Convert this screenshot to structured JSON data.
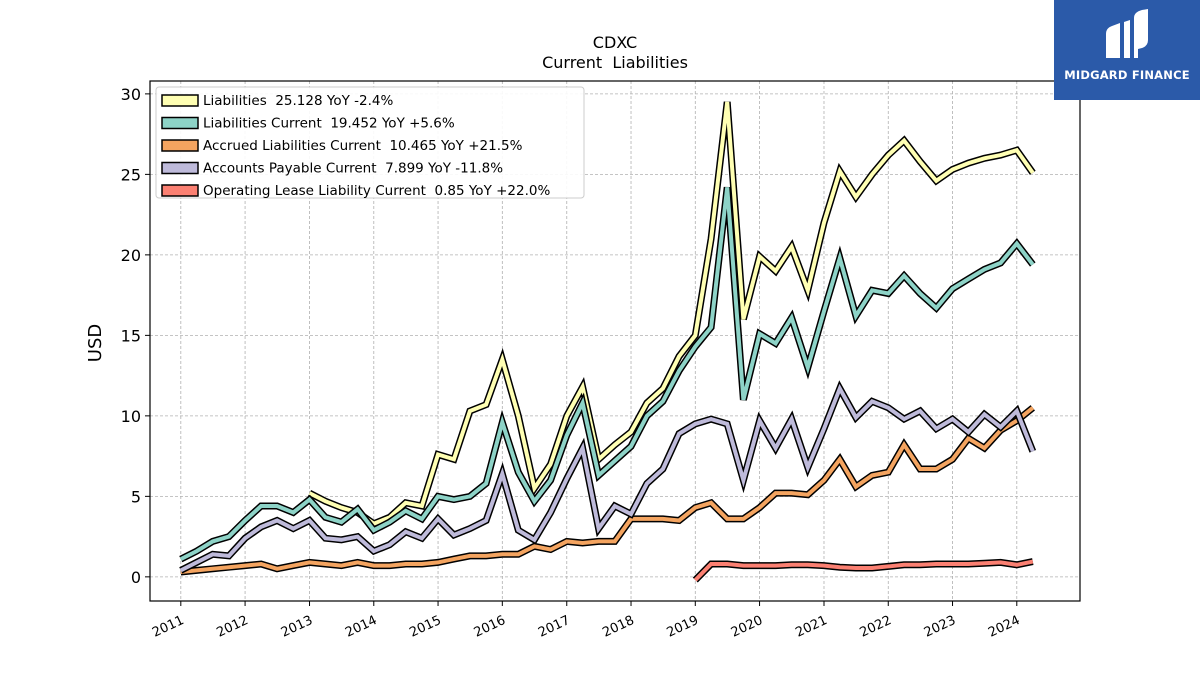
{
  "brand": {
    "name": "MIDGARD FINANCE",
    "color": "#2b5aa9"
  },
  "chart_data": {
    "type": "line",
    "title": "CDXC",
    "subtitle": "Current  Liabilities",
    "ylabel": "USD",
    "xlabel": "",
    "ylim": [
      -1.5,
      30.8
    ],
    "yticks": [
      0,
      5,
      10,
      15,
      20,
      25,
      30
    ],
    "xticks": [
      "2011",
      "2012",
      "2013",
      "2014",
      "2015",
      "2016",
      "2017",
      "2018",
      "2019",
      "2020",
      "2021",
      "2022",
      "2023",
      "2024"
    ],
    "grid": true,
    "legend_position": "top-left",
    "series": [
      {
        "name": "Liabilities",
        "legend_label": "Liabilities  25.128 YoY -2.4%",
        "color": "#ffffb3",
        "points": [
          [
            "2013-01-01",
            5.2
          ],
          [
            "2013-04-01",
            4.7
          ],
          [
            "2013-07-01",
            4.3
          ],
          [
            "2013-10-01",
            4.0
          ],
          [
            "2014-01-01",
            3.3
          ],
          [
            "2014-04-01",
            3.7
          ],
          [
            "2014-07-01",
            4.6
          ],
          [
            "2014-10-01",
            4.4
          ],
          [
            "2015-01-01",
            7.6
          ],
          [
            "2015-04-01",
            7.3
          ],
          [
            "2015-07-01",
            10.3
          ],
          [
            "2015-10-01",
            10.7
          ],
          [
            "2016-01-01",
            13.5
          ],
          [
            "2016-04-01",
            10.0
          ],
          [
            "2016-07-01",
            5.5
          ],
          [
            "2016-10-01",
            7.0
          ],
          [
            "2017-01-01",
            10.0
          ],
          [
            "2017-04-01",
            11.8
          ],
          [
            "2017-07-01",
            7.3
          ],
          [
            "2017-10-01",
            8.2
          ],
          [
            "2018-01-01",
            9.0
          ],
          [
            "2018-04-01",
            10.8
          ],
          [
            "2018-07-01",
            11.7
          ],
          [
            "2018-10-01",
            13.7
          ],
          [
            "2019-01-01",
            15.0
          ],
          [
            "2019-04-01",
            21.0
          ],
          [
            "2019-07-01",
            29.5
          ],
          [
            "2019-10-01",
            16.0
          ],
          [
            "2020-01-01",
            19.9
          ],
          [
            "2020-04-01",
            19.0
          ],
          [
            "2020-07-01",
            20.5
          ],
          [
            "2020-10-01",
            17.8
          ],
          [
            "2021-01-01",
            22.0
          ],
          [
            "2021-04-01",
            25.2
          ],
          [
            "2021-07-01",
            23.6
          ],
          [
            "2021-10-01",
            25.0
          ],
          [
            "2022-01-01",
            26.2
          ],
          [
            "2022-04-01",
            27.1
          ],
          [
            "2022-07-01",
            25.8
          ],
          [
            "2022-10-01",
            24.6
          ],
          [
            "2023-01-01",
            25.3
          ],
          [
            "2023-04-01",
            25.7
          ],
          [
            "2023-07-01",
            26.0
          ],
          [
            "2023-10-01",
            26.2
          ],
          [
            "2024-01-01",
            26.5
          ],
          [
            "2024-04-01",
            25.1
          ]
        ]
      },
      {
        "name": "Liabilities Current",
        "legend_label": "Liabilities Current  19.452 YoY +5.6%",
        "color": "#8dd3c7",
        "points": [
          [
            "2011-01-01",
            1.1
          ],
          [
            "2011-04-01",
            1.6
          ],
          [
            "2011-07-01",
            2.2
          ],
          [
            "2011-10-01",
            2.5
          ],
          [
            "2012-01-01",
            3.5
          ],
          [
            "2012-04-01",
            4.4
          ],
          [
            "2012-07-01",
            4.4
          ],
          [
            "2012-10-01",
            4.0
          ],
          [
            "2013-01-01",
            4.8
          ],
          [
            "2013-04-01",
            3.7
          ],
          [
            "2013-07-01",
            3.4
          ],
          [
            "2013-10-01",
            4.2
          ],
          [
            "2014-01-01",
            2.9
          ],
          [
            "2014-04-01",
            3.4
          ],
          [
            "2014-07-01",
            4.1
          ],
          [
            "2014-10-01",
            3.6
          ],
          [
            "2015-01-01",
            5.0
          ],
          [
            "2015-04-01",
            4.8
          ],
          [
            "2015-07-01",
            5.0
          ],
          [
            "2015-10-01",
            5.8
          ],
          [
            "2016-01-01",
            9.6
          ],
          [
            "2016-04-01",
            6.5
          ],
          [
            "2016-07-01",
            4.7
          ],
          [
            "2016-10-01",
            6.0
          ],
          [
            "2017-01-01",
            8.8
          ],
          [
            "2017-04-01",
            10.8
          ],
          [
            "2017-07-01",
            6.3
          ],
          [
            "2017-10-01",
            7.2
          ],
          [
            "2018-01-01",
            8.1
          ],
          [
            "2018-04-01",
            10.0
          ],
          [
            "2018-07-01",
            10.9
          ],
          [
            "2018-10-01",
            12.8
          ],
          [
            "2019-01-01",
            14.3
          ],
          [
            "2019-04-01",
            15.5
          ],
          [
            "2019-07-01",
            24.2
          ],
          [
            "2019-10-01",
            11.0
          ],
          [
            "2020-01-01",
            15.1
          ],
          [
            "2020-04-01",
            14.5
          ],
          [
            "2020-07-01",
            16.1
          ],
          [
            "2020-10-01",
            13.0
          ],
          [
            "2021-01-01",
            16.5
          ],
          [
            "2021-04-01",
            19.8
          ],
          [
            "2021-07-01",
            16.2
          ],
          [
            "2021-10-01",
            17.8
          ],
          [
            "2022-01-01",
            17.6
          ],
          [
            "2022-04-01",
            18.7
          ],
          [
            "2022-07-01",
            17.6
          ],
          [
            "2022-10-01",
            16.7
          ],
          [
            "2023-01-01",
            17.9
          ],
          [
            "2023-04-01",
            18.5
          ],
          [
            "2023-07-01",
            19.1
          ],
          [
            "2023-10-01",
            19.5
          ],
          [
            "2024-01-01",
            20.7
          ],
          [
            "2024-04-01",
            19.4
          ]
        ]
      },
      {
        "name": "Accrued Liabilities Current",
        "legend_label": "Accrued Liabilities Current  10.465 YoY +21.5%",
        "color": "#f4a460",
        "points": [
          [
            "2011-01-01",
            0.3
          ],
          [
            "2011-04-01",
            0.4
          ],
          [
            "2011-07-01",
            0.5
          ],
          [
            "2011-10-01",
            0.6
          ],
          [
            "2012-01-01",
            0.7
          ],
          [
            "2012-04-01",
            0.8
          ],
          [
            "2012-07-01",
            0.5
          ],
          [
            "2012-10-01",
            0.7
          ],
          [
            "2013-01-01",
            0.9
          ],
          [
            "2013-04-01",
            0.8
          ],
          [
            "2013-07-01",
            0.7
          ],
          [
            "2013-10-01",
            0.9
          ],
          [
            "2014-01-01",
            0.7
          ],
          [
            "2014-04-01",
            0.7
          ],
          [
            "2014-07-01",
            0.8
          ],
          [
            "2014-10-01",
            0.8
          ],
          [
            "2015-01-01",
            0.9
          ],
          [
            "2015-04-01",
            1.1
          ],
          [
            "2015-07-01",
            1.3
          ],
          [
            "2015-10-01",
            1.3
          ],
          [
            "2016-01-01",
            1.4
          ],
          [
            "2016-04-01",
            1.4
          ],
          [
            "2016-07-01",
            1.9
          ],
          [
            "2016-10-01",
            1.7
          ],
          [
            "2017-01-01",
            2.2
          ],
          [
            "2017-04-01",
            2.1
          ],
          [
            "2017-07-01",
            2.2
          ],
          [
            "2017-10-01",
            2.2
          ],
          [
            "2018-01-01",
            3.6
          ],
          [
            "2018-04-01",
            3.6
          ],
          [
            "2018-07-01",
            3.6
          ],
          [
            "2018-10-01",
            3.5
          ],
          [
            "2019-01-01",
            4.3
          ],
          [
            "2019-04-01",
            4.6
          ],
          [
            "2019-07-01",
            3.6
          ],
          [
            "2019-10-01",
            3.6
          ],
          [
            "2020-01-01",
            4.3
          ],
          [
            "2020-04-01",
            5.2
          ],
          [
            "2020-07-01",
            5.2
          ],
          [
            "2020-10-01",
            5.1
          ],
          [
            "2021-01-01",
            6.0
          ],
          [
            "2021-04-01",
            7.3
          ],
          [
            "2021-07-01",
            5.6
          ],
          [
            "2021-10-01",
            6.3
          ],
          [
            "2022-01-01",
            6.5
          ],
          [
            "2022-04-01",
            8.2
          ],
          [
            "2022-07-01",
            6.7
          ],
          [
            "2022-10-01",
            6.7
          ],
          [
            "2023-01-01",
            7.3
          ],
          [
            "2023-04-01",
            8.6
          ],
          [
            "2023-07-01",
            8.0
          ],
          [
            "2023-10-01",
            9.1
          ],
          [
            "2024-01-01",
            9.7
          ],
          [
            "2024-04-01",
            10.5
          ]
        ]
      },
      {
        "name": "Accounts Payable Current",
        "legend_label": "Accounts Payable Current  7.899 YoY -11.8%",
        "color": "#bebada",
        "points": [
          [
            "2011-01-01",
            0.4
          ],
          [
            "2011-04-01",
            0.9
          ],
          [
            "2011-07-01",
            1.4
          ],
          [
            "2011-10-01",
            1.3
          ],
          [
            "2012-01-01",
            2.4
          ],
          [
            "2012-04-01",
            3.1
          ],
          [
            "2012-07-01",
            3.5
          ],
          [
            "2012-10-01",
            3.0
          ],
          [
            "2013-01-01",
            3.5
          ],
          [
            "2013-04-01",
            2.4
          ],
          [
            "2013-07-01",
            2.3
          ],
          [
            "2013-10-01",
            2.5
          ],
          [
            "2014-01-01",
            1.6
          ],
          [
            "2014-04-01",
            2.0
          ],
          [
            "2014-07-01",
            2.8
          ],
          [
            "2014-10-01",
            2.4
          ],
          [
            "2015-01-01",
            3.6
          ],
          [
            "2015-04-01",
            2.6
          ],
          [
            "2015-07-01",
            3.0
          ],
          [
            "2015-10-01",
            3.5
          ],
          [
            "2016-01-01",
            6.4
          ],
          [
            "2016-04-01",
            2.9
          ],
          [
            "2016-07-01",
            2.3
          ],
          [
            "2016-10-01",
            4.0
          ],
          [
            "2017-01-01",
            6.1
          ],
          [
            "2017-04-01",
            8.0
          ],
          [
            "2017-07-01",
            3.0
          ],
          [
            "2017-10-01",
            4.4
          ],
          [
            "2018-01-01",
            3.9
          ],
          [
            "2018-04-01",
            5.8
          ],
          [
            "2018-07-01",
            6.7
          ],
          [
            "2018-10-01",
            8.9
          ],
          [
            "2019-01-01",
            9.5
          ],
          [
            "2019-04-01",
            9.8
          ],
          [
            "2019-07-01",
            9.5
          ],
          [
            "2019-10-01",
            6.0
          ],
          [
            "2020-01-01",
            9.7
          ],
          [
            "2020-04-01",
            8.0
          ],
          [
            "2020-07-01",
            9.8
          ],
          [
            "2020-10-01",
            6.8
          ],
          [
            "2021-01-01",
            9.2
          ],
          [
            "2021-04-01",
            11.7
          ],
          [
            "2021-07-01",
            9.9
          ],
          [
            "2021-10-01",
            10.9
          ],
          [
            "2022-01-01",
            10.5
          ],
          [
            "2022-04-01",
            9.8
          ],
          [
            "2022-07-01",
            10.3
          ],
          [
            "2022-10-01",
            9.2
          ],
          [
            "2023-01-01",
            9.8
          ],
          [
            "2023-04-01",
            9.0
          ],
          [
            "2023-07-01",
            10.1
          ],
          [
            "2023-10-01",
            9.3
          ],
          [
            "2024-01-01",
            10.3
          ],
          [
            "2024-04-01",
            7.8
          ]
        ]
      },
      {
        "name": "Operating Lease Liability Current",
        "legend_label": "Operating Lease Liability Current  0.85 YoY +22.0%",
        "color": "#fb8072",
        "points": [
          [
            "2019-01-01",
            -0.2
          ],
          [
            "2019-04-01",
            0.8
          ],
          [
            "2019-07-01",
            0.8
          ],
          [
            "2019-10-01",
            0.7
          ],
          [
            "2020-01-01",
            0.7
          ],
          [
            "2020-04-01",
            0.7
          ],
          [
            "2020-07-01",
            0.75
          ],
          [
            "2020-10-01",
            0.75
          ],
          [
            "2021-01-01",
            0.7
          ],
          [
            "2021-04-01",
            0.6
          ],
          [
            "2021-07-01",
            0.55
          ],
          [
            "2021-10-01",
            0.55
          ],
          [
            "2022-01-01",
            0.65
          ],
          [
            "2022-04-01",
            0.75
          ],
          [
            "2022-07-01",
            0.75
          ],
          [
            "2022-10-01",
            0.8
          ],
          [
            "2023-01-01",
            0.8
          ],
          [
            "2023-04-01",
            0.8
          ],
          [
            "2023-07-01",
            0.85
          ],
          [
            "2023-10-01",
            0.9
          ],
          [
            "2024-01-01",
            0.75
          ],
          [
            "2024-04-01",
            0.95
          ]
        ]
      }
    ]
  }
}
